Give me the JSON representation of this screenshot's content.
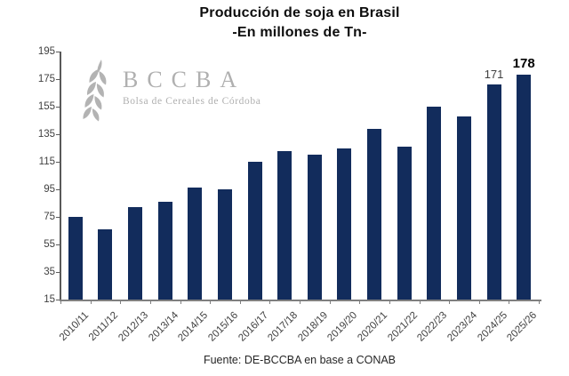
{
  "chart_data": {
    "type": "bar",
    "title": "Producción de soja en Brasil",
    "subtitle": "-En millones de Tn-",
    "categories": [
      "2010/11",
      "2011/12",
      "2012/13",
      "2013/14",
      "2014/15",
      "2015/16",
      "2016/17",
      "2017/18",
      "2018/19",
      "2019/20",
      "2020/21",
      "2021/22",
      "2022/23",
      "2023/24",
      "2024/25",
      "2025/26"
    ],
    "values": [
      75,
      66,
      82,
      86,
      96,
      95,
      115,
      123,
      120,
      125,
      139,
      126,
      155,
      148,
      171,
      178
    ],
    "xlabel": "",
    "ylabel": "",
    "ylim": [
      15,
      195
    ],
    "y_ticks": [
      15,
      35,
      55,
      75,
      95,
      115,
      135,
      155,
      175,
      195
    ],
    "grid": false,
    "legend": "none",
    "bar_color": "#122c5c",
    "axis_color": "#595959",
    "tick_label_color": "#404040",
    "data_labels": [
      {
        "index": 14,
        "text": "171",
        "bold": false
      },
      {
        "index": 15,
        "text": "178",
        "bold": true
      }
    ]
  },
  "watermark": {
    "acronym": "BCCBA",
    "name": "Bolsa de Cereales de Córdoba",
    "color": "#b0b0b0"
  },
  "source": {
    "text": "Fuente: DE-BCCBA en base a CONAB"
  }
}
